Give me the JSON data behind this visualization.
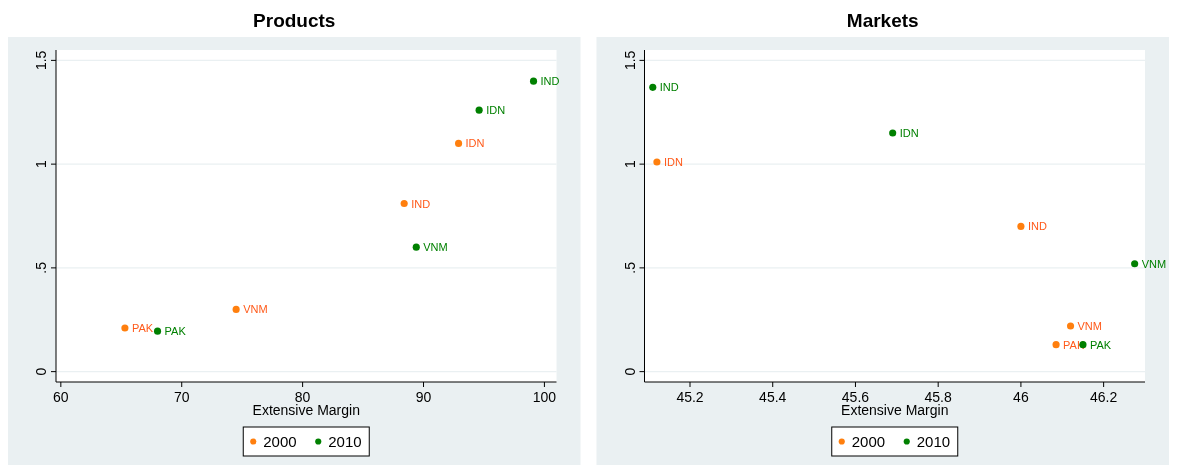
{
  "chart_data": [
    {
      "type": "scatter",
      "title": "Products",
      "xlabel": "Extensive Margin",
      "xlim": [
        59.6,
        101
      ],
      "xticks": [
        60,
        70,
        80,
        90,
        100
      ],
      "ylim": [
        -0.05,
        1.55
      ],
      "yticks": [
        {
          "value": 0,
          "label": "0"
        },
        {
          "value": 0.5,
          "label": ".5"
        },
        {
          "value": 1,
          "label": "1"
        },
        {
          "value": 1.5,
          "label": "1.5"
        }
      ],
      "grid": "y",
      "legend": "bottom",
      "marker": "circle",
      "series": [
        {
          "name": "2000",
          "color": "#ff7f0e",
          "x": [
            65.3,
            74.5,
            88.4,
            92.9
          ],
          "values": [
            0.21,
            0.3,
            0.81,
            1.1
          ],
          "value_labels": [
            "PAK",
            "VNM",
            "IND",
            "IDN"
          ]
        },
        {
          "name": "2010",
          "color": "#008000",
          "x": [
            68.0,
            89.4,
            94.6,
            99.1
          ],
          "values": [
            0.195,
            0.6,
            1.26,
            1.4
          ],
          "value_labels": [
            "PAK",
            "VNM",
            "IDN",
            "IND"
          ]
        }
      ]
    },
    {
      "type": "scatter",
      "title": "Markets",
      "xlabel": "Extensive Margin",
      "xlim": [
        45.09,
        46.3
      ],
      "xticks": [
        45.2,
        45.4,
        45.6,
        45.8,
        46,
        46.2
      ],
      "ylim": [
        -0.05,
        1.55
      ],
      "yticks": [
        {
          "value": 0,
          "label": "0"
        },
        {
          "value": 0.5,
          "label": ".5"
        },
        {
          "value": 1,
          "label": "1"
        },
        {
          "value": 1.5,
          "label": "1.5"
        }
      ],
      "grid": "y",
      "legend": "bottom",
      "marker": "circle",
      "series": [
        {
          "name": "2000",
          "color": "#ff7f0e",
          "x": [
            45.12,
            46.0,
            46.12,
            46.085
          ],
          "values": [
            1.01,
            0.7,
            0.22,
            0.13
          ],
          "value_labels": [
            "IDN",
            "IND",
            "VNM",
            "PAK"
          ]
        },
        {
          "name": "2010",
          "color": "#008000",
          "x": [
            45.11,
            45.69,
            46.275,
            46.15
          ],
          "values": [
            1.37,
            1.15,
            0.52,
            0.13
          ],
          "value_labels": [
            "IND",
            "IDN",
            "VNM",
            "PAK"
          ]
        }
      ]
    }
  ]
}
